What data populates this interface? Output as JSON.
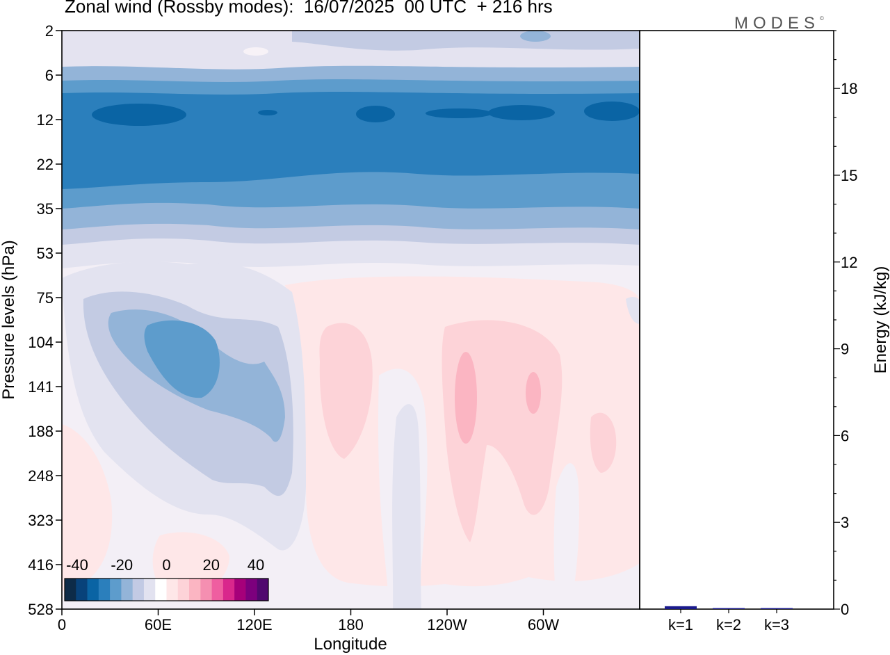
{
  "title": "Zonal wind (Rossby modes):  16/07/2025  00 UTC  + 216 hrs",
  "brand": "MODES",
  "brand_mark": "©",
  "chart_data": [
    {
      "type": "heatmap",
      "title": "Zonal wind (Rossby modes):  16/07/2025  00 UTC  + 216 hrs",
      "xlabel": "Longitude",
      "ylabel": "Pressure levels (hPa)",
      "x_ticks": [
        "0",
        "60E",
        "120E",
        "180",
        "120W",
        "60W"
      ],
      "y_ticks": [
        "2",
        "6",
        "12",
        "22",
        "35",
        "53",
        "75",
        "104",
        "141",
        "188",
        "248",
        "323",
        "416",
        "528"
      ],
      "y_axis": "log pressure, inverted",
      "colorbar": {
        "tick_labels": [
          "-40",
          "-20",
          "0",
          "20",
          "40"
        ],
        "colors": [
          "#0d2b48",
          "#08427a",
          "#0a64a4",
          "#2b7fbc",
          "#5d9ccc",
          "#93b4d8",
          "#c2cae4",
          "#e2e2f0",
          "#ffffff",
          "#fee7e8",
          "#fdd3d8",
          "#fbb5c2",
          "#f58fb1",
          "#ef5ea0",
          "#d9278c",
          "#a6007a",
          "#7c007d",
          "#50086e"
        ]
      },
      "grid": false
    },
    {
      "type": "bar",
      "ylabel": "Energy (kJ/kg)",
      "categories": [
        "k=1",
        "k=2",
        "k=3"
      ],
      "values": [
        0.1,
        0.02,
        0.01
      ],
      "ylim": [
        0,
        20
      ],
      "y_ticks": [
        "0",
        "3",
        "6",
        "9",
        "12",
        "15",
        "18"
      ],
      "bar_colors": [
        "#1a1a8c",
        "#1a1a8c",
        "#1a1a8c"
      ]
    }
  ]
}
